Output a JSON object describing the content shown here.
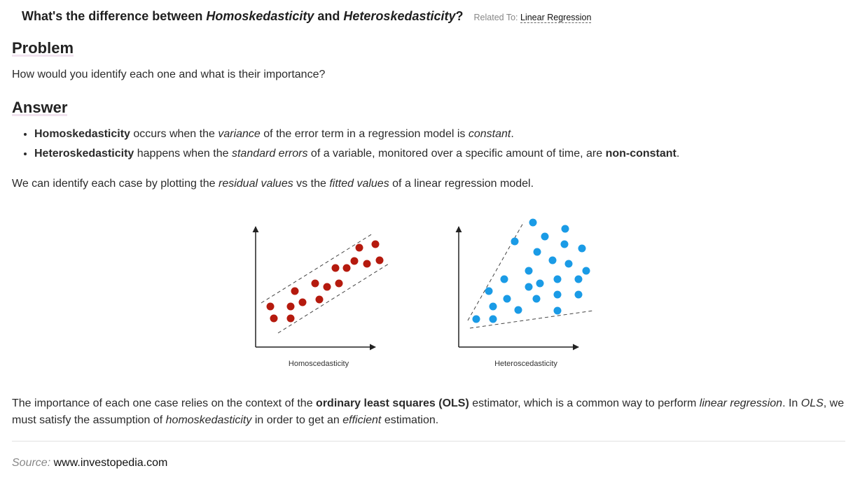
{
  "question": {
    "prefix": "What's the difference between ",
    "term1": "Homoskedasticity",
    "and": " and ",
    "term2": "Heteroskedasticity",
    "suffix": "?",
    "related_label": "Related To: ",
    "related_link": "Linear Regression"
  },
  "problem": {
    "heading": "Problem",
    "text": "How would you identify each one and what is their importance?"
  },
  "answer": {
    "heading": "Answer",
    "bullets": [
      {
        "b": "Homoskedasticity",
        "t1": " occurs when the ",
        "i1": "variance",
        "t2": " of the error term in a regression model is ",
        "i2": "constant",
        "t3": "."
      },
      {
        "b": "Heteroskedasticity",
        "t1": " happens when the ",
        "i1": "standard errors",
        "t2": " of a variable, monitored over a specific amount of time, are ",
        "b2": "non-constant",
        "t3": "."
      }
    ],
    "identify": {
      "t1": "We can identify each case by plotting the ",
      "i1": "residual values",
      "t2": " vs the ",
      "i2": "fitted values",
      "t3": " of a linear regression model."
    },
    "importance": {
      "t1": "The importance of each one case relies on the context of the ",
      "b1": "ordinary least squares (OLS)",
      "t2": " estimator, which is a common way to perform ",
      "i1": "linear regression",
      "t3": ". In ",
      "i2": "OLS",
      "t4": ", we must satisfy the assumption of ",
      "i3": "homoskedasticity",
      "t5": " in order to get an ",
      "i4": "efficient",
      "t6": " estimation."
    }
  },
  "figure": {
    "homo": {
      "caption": "Homoscedasticity",
      "color": "#b51a0e"
    },
    "hetero": {
      "caption": "Heteroscedasticity",
      "color": "#1a9be6"
    }
  },
  "source": {
    "label": "Source:",
    "text": " www.investopedia.com"
  }
}
